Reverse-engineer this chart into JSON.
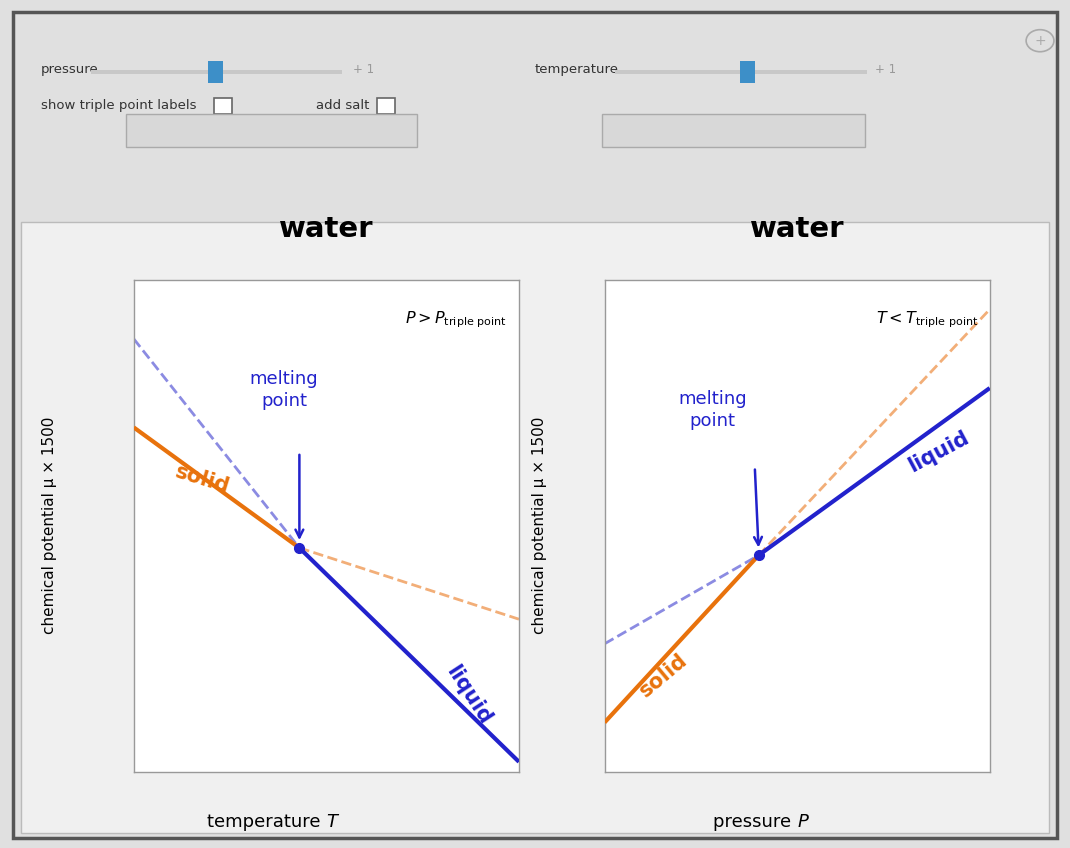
{
  "fig_width": 10.7,
  "fig_height": 8.48,
  "fig_bg_color": "#e0e0e0",
  "plot_bg_color": "#ffffff",
  "outer_border_color": "#555555",
  "title": "water",
  "solid_color": "#e8720c",
  "liquid_color": "#2222cc",
  "dashed_solid_color": "#f0a060",
  "dashed_liquid_color": "#7777dd",
  "annotation_color": "#2222cc",
  "left_xlabel": "temperature ",
  "left_xlabel_italic": "T",
  "right_xlabel": "pressure ",
  "right_xlabel_italic": "P",
  "ylabel": "chemical potential μ × 1500",
  "ui_bg_color": "#ebebeb",
  "slider_color": "#3d8fc8",
  "slider_track_color": "#c8c8c8",
  "dropdown_bg_color": "#d8d8d8",
  "main_panel_bg": "#f0f0f0",
  "main_panel_edge": "#bbbbbb"
}
